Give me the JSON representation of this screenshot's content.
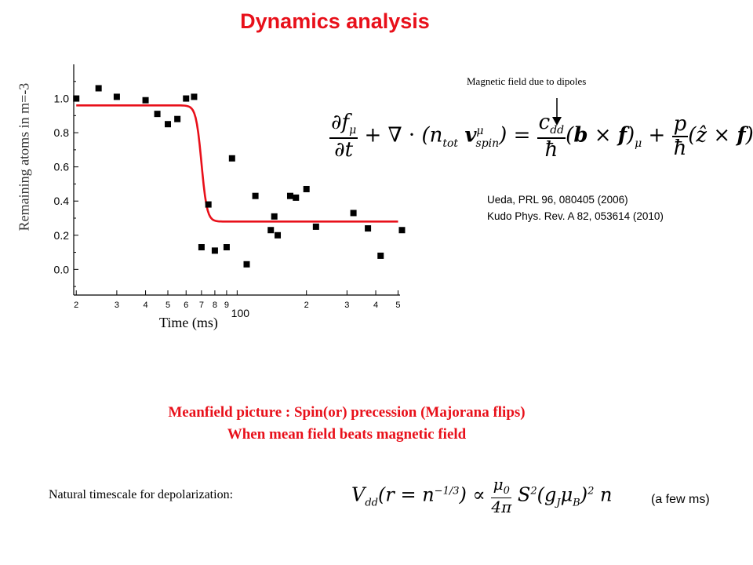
{
  "title": "Dynamics analysis",
  "annotation": "Magnetic field due to dipoles",
  "equation_main": "∂f_μ/∂t + ∇·(n_tot v^μ_spin) = (c_dd/ħ)(b × f)_μ + (p/ħ)(ẑ × f)_μ",
  "references": [
    "Ueda, PRL 96, 080405 (2006)",
    "Kudo Phys. Rev. A 82, 053614 (2010)"
  ],
  "meanfield": {
    "line1": "Meanfield picture : Spin(or) precession (Majorana flips)",
    "line2": "When mean field beats magnetic field"
  },
  "natural_label": "Natural timescale for depolarization:",
  "equation_dd": "V_dd(r = n^-1/3) ∝ (μ0/4π) S² (g_J μ_B)² n",
  "few_ms": "(a few ms)",
  "colors": {
    "accent": "#e8101a",
    "markers": "#000000"
  },
  "chart_data": {
    "type": "scatter",
    "xscale": "log",
    "xlim": [
      19.5,
      510
    ],
    "ylim": [
      -0.15,
      1.2
    ],
    "xlabel": "Time (ms)",
    "ylabel": "Remaining atoms in m=-3",
    "y_ticks": [
      "1.0",
      "0.8",
      "0.6",
      "0.4",
      "0.2",
      "0.0"
    ],
    "y_tick_values": [
      1.0,
      0.8,
      0.6,
      0.4,
      0.2,
      0.0
    ],
    "x_ticks": [
      {
        "v": 20,
        "t": "2"
      },
      {
        "v": 30,
        "t": "3"
      },
      {
        "v": 40,
        "t": "4"
      },
      {
        "v": 50,
        "t": "5"
      },
      {
        "v": 60,
        "t": "6"
      },
      {
        "v": 70,
        "t": "7"
      },
      {
        "v": 80,
        "t": "8"
      },
      {
        "v": 90,
        "t": "9"
      },
      {
        "v": 100,
        "t": "100"
      },
      {
        "v": 200,
        "t": "2"
      },
      {
        "v": 300,
        "t": "3"
      },
      {
        "v": 400,
        "t": "4"
      },
      {
        "v": 500,
        "t": "5"
      }
    ],
    "points": [
      {
        "x": 20,
        "y": 1.0
      },
      {
        "x": 25,
        "y": 1.06
      },
      {
        "x": 30,
        "y": 1.01
      },
      {
        "x": 40,
        "y": 0.99
      },
      {
        "x": 45,
        "y": 0.91
      },
      {
        "x": 50,
        "y": 0.85
      },
      {
        "x": 55,
        "y": 0.88
      },
      {
        "x": 60,
        "y": 1.0
      },
      {
        "x": 65,
        "y": 1.01
      },
      {
        "x": 70,
        "y": 0.13
      },
      {
        "x": 75,
        "y": 0.38
      },
      {
        "x": 80,
        "y": 0.11
      },
      {
        "x": 90,
        "y": 0.13
      },
      {
        "x": 95,
        "y": 0.65
      },
      {
        "x": 110,
        "y": 0.03
      },
      {
        "x": 120,
        "y": 0.43
      },
      {
        "x": 140,
        "y": 0.23
      },
      {
        "x": 145,
        "y": 0.31
      },
      {
        "x": 150,
        "y": 0.2
      },
      {
        "x": 170,
        "y": 0.43
      },
      {
        "x": 180,
        "y": 0.42
      },
      {
        "x": 200,
        "y": 0.47
      },
      {
        "x": 220,
        "y": 0.25
      },
      {
        "x": 320,
        "y": 0.33
      },
      {
        "x": 370,
        "y": 0.24
      },
      {
        "x": 420,
        "y": 0.08
      },
      {
        "x": 520,
        "y": 0.23
      }
    ],
    "fit": {
      "color": "#e8101a",
      "high": 0.96,
      "low": 0.28,
      "center": 70,
      "width": 0.012,
      "x_range": [
        20,
        500
      ]
    }
  }
}
